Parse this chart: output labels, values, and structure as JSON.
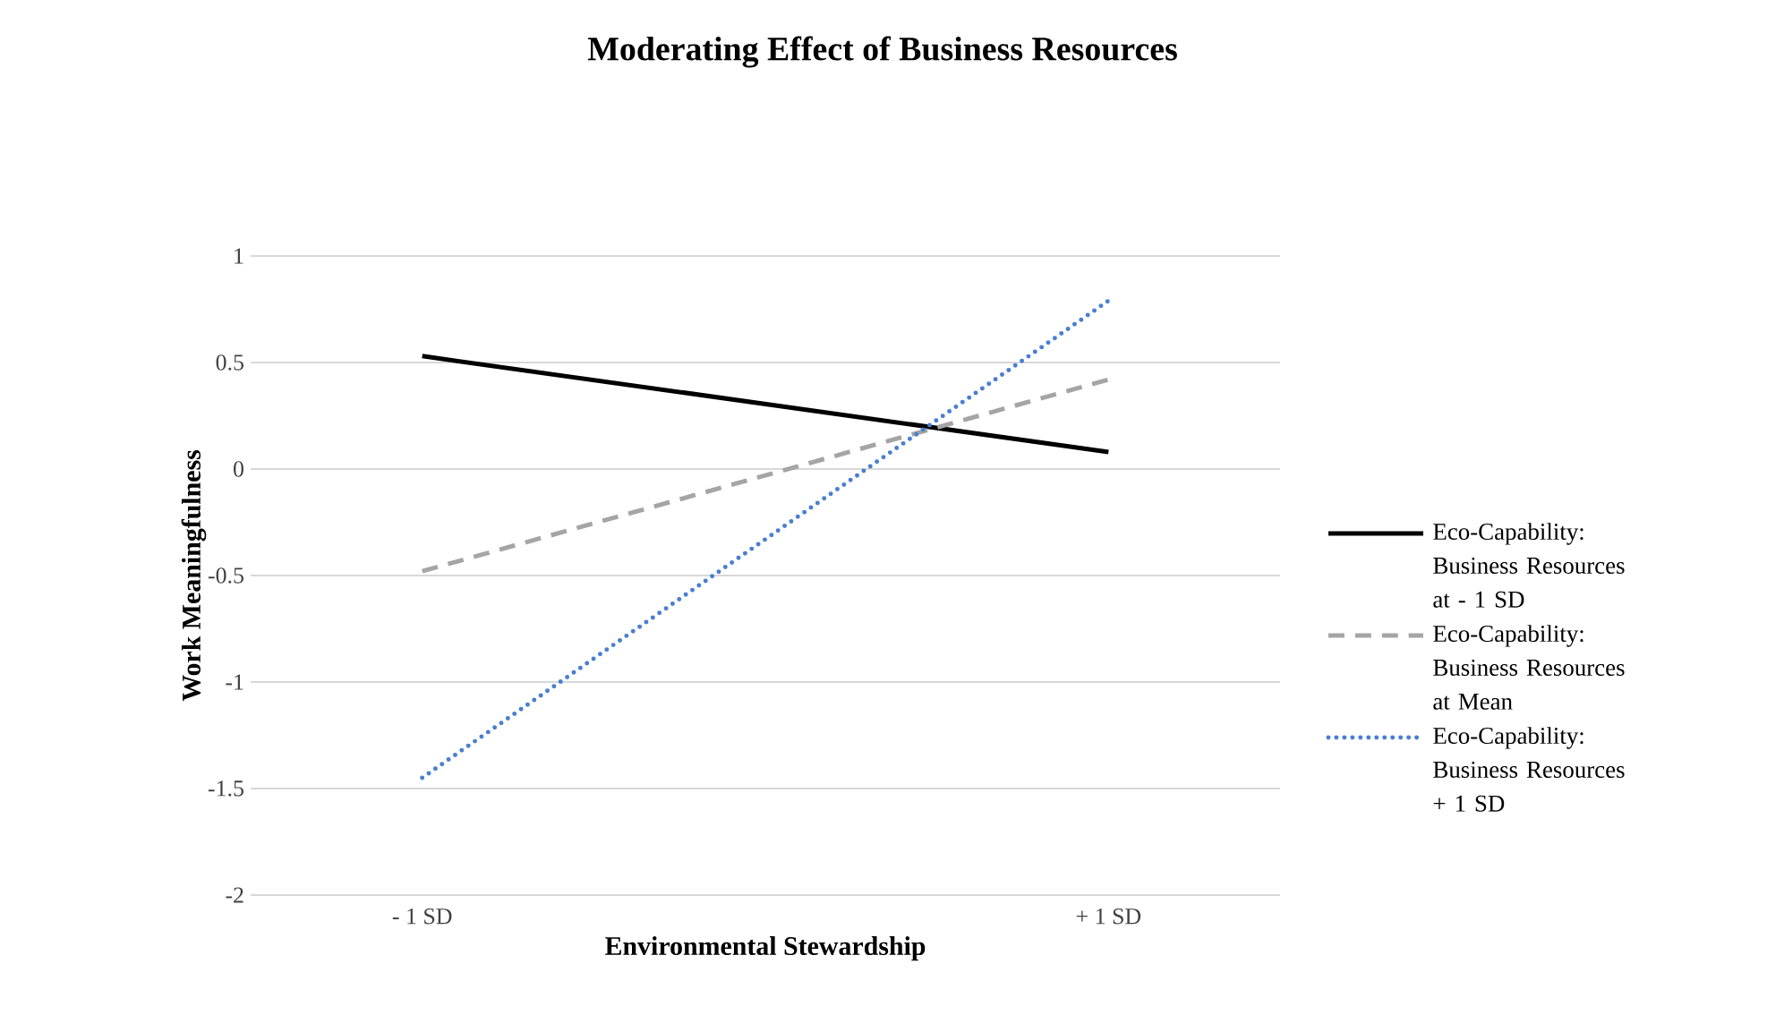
{
  "chart_data": {
    "type": "line",
    "title": "Moderating Effect of Business Resources",
    "xlabel": "Environmental Stewardship",
    "ylabel": "Work Meaningfulness",
    "categories": [
      "- 1 SD",
      "+ 1 SD"
    ],
    "series": [
      {
        "name": "Eco-Capability: Business Resources at - 1 SD",
        "color": "#000000",
        "line_style": "solid",
        "values": [
          0.53,
          0.08
        ]
      },
      {
        "name": "Eco-Capability: Business Resources at Mean",
        "color": "#a5a5a5",
        "line_style": "dashed",
        "values": [
          -0.48,
          0.42
        ]
      },
      {
        "name": "Eco-Capability: Business Resources + 1 SD",
        "color": "#4a7fd0",
        "line_style": "dotted",
        "values": [
          -1.45,
          0.79
        ]
      }
    ],
    "ylim": [
      -2,
      1
    ],
    "yticks": [
      -2,
      -1.5,
      -1,
      -0.5,
      0,
      0.5,
      1
    ],
    "grid": "y",
    "legend": "right",
    "marker": "none"
  }
}
